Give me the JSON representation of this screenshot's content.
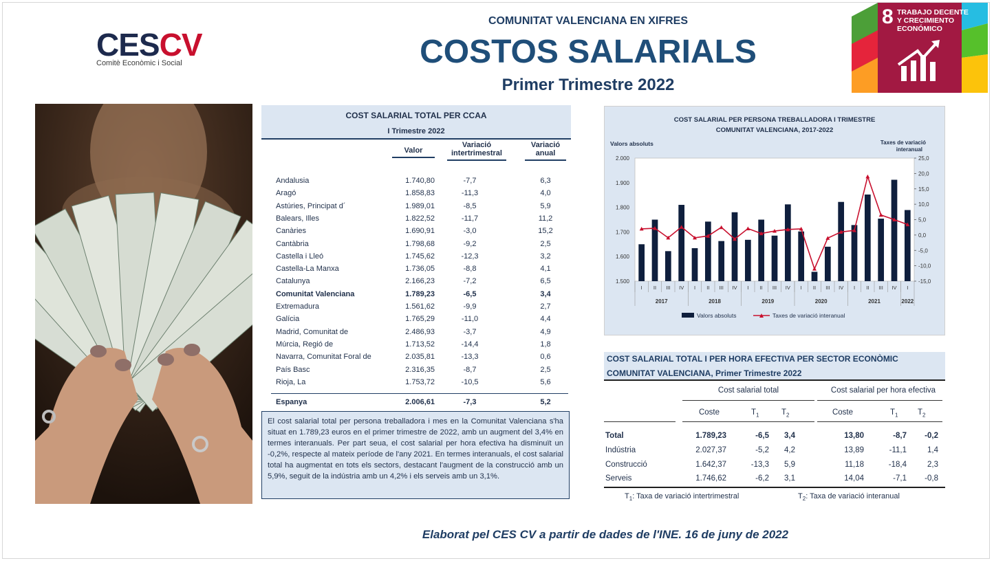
{
  "header": {
    "supertitle": "COMUNITAT VALENCIANA EN XIFRES",
    "title": "COSTOS SALARIALS",
    "subtitle": "Primer Trimestre 2022"
  },
  "logo": {
    "ces": "CES",
    "cv": "CV",
    "org": "Comitè Econòmic i Social"
  },
  "sdg": {
    "number": "8",
    "label_line1": "TRABAJO DECENTE",
    "label_line2": "Y CRECIMIENTO",
    "label_line3": "ECONÓMICO",
    "color": "#A21942"
  },
  "ccaa_table": {
    "title": "COST SALARIAL TOTAL PER CCAA",
    "period": "I Trimestre 2022",
    "col_valor": "Valor",
    "col_inter_1": "Variació",
    "col_inter_2": "intertrimestral",
    "col_anual_1": "Variació",
    "col_anual_2": "anual",
    "rows": [
      {
        "name": "Andalusia",
        "valor": "1.740,80",
        "inter": "-7,7",
        "anual": "6,3"
      },
      {
        "name": "Aragó",
        "valor": "1.858,83",
        "inter": "-11,3",
        "anual": "4,0"
      },
      {
        "name": "Astúries, Principat d´",
        "valor": "1.989,01",
        "inter": "-8,5",
        "anual": "5,9"
      },
      {
        "name": "Balears, Illes",
        "valor": "1.822,52",
        "inter": "-11,7",
        "anual": "11,2"
      },
      {
        "name": "Canàries",
        "valor": "1.690,91",
        "inter": "-3,0",
        "anual": "15,2"
      },
      {
        "name": "Cantàbria",
        "valor": "1.798,68",
        "inter": "-9,2",
        "anual": "2,5"
      },
      {
        "name": "Castella i Lleó",
        "valor": "1.745,62",
        "inter": "-12,3",
        "anual": "3,2"
      },
      {
        "name": "Castella-La Manxa",
        "valor": "1.736,05",
        "inter": "-8,8",
        "anual": "4,1"
      },
      {
        "name": "Catalunya",
        "valor": "2.166,23",
        "inter": "-7,2",
        "anual": "6,5"
      },
      {
        "name": "Comunitat Valenciana",
        "valor": "1.789,23",
        "inter": "-6,5",
        "anual": "3,4",
        "bold": true
      },
      {
        "name": "Extremadura",
        "valor": "1.561,62",
        "inter": "-9,9",
        "anual": "2,7"
      },
      {
        "name": "Galícia",
        "valor": "1.765,29",
        "inter": "-11,0",
        "anual": "4,4"
      },
      {
        "name": "Madrid, Comunitat de",
        "valor": "2.486,93",
        "inter": "-3,7",
        "anual": "4,9"
      },
      {
        "name": "Múrcia, Regió de",
        "valor": "1.713,52",
        "inter": "-14,4",
        "anual": "1,8"
      },
      {
        "name": "Navarra, Comunitat Foral de",
        "valor": "2.035,81",
        "inter": "-13,3",
        "anual": "0,6"
      },
      {
        "name": "País Basc",
        "valor": "2.316,35",
        "inter": "-8,7",
        "anual": "2,5"
      },
      {
        "name": "Rioja, La",
        "valor": "1.753,72",
        "inter": "-10,5",
        "anual": "5,6"
      }
    ],
    "total": {
      "name": "Espanya",
      "valor": "2.006,61",
      "inter": "-7,3",
      "anual": "5,2"
    }
  },
  "note_text": "El cost salarial total per persona treballadora i mes en la Comunitat Valenciana s'ha situat en 1.789,23 euros en el primer trimestre de 2022, amb un augment del 3,4% en termes interanuals. Per part seua, el cost salarial per hora efectiva ha disminuït un -0,2%, respecte al mateix període de l'any 2021. En termes interanuals, el cost salarial total ha augmentat en tots els sectors, destacant l'augment de la construcció amb un 5,9%, seguit de la indústria amb un 4,2% i els serveis amb un 3,1%.",
  "chart_data": {
    "type": "bar",
    "title": "COST SALARIAL PER PERSONA TREBALLADORA I TRIMESTRE",
    "subtitle": "COMUNITAT VALENCIANA, 2017-2022",
    "ylabel_left": "Valors absoluts",
    "ylabel_right_1": "Taxes de variació",
    "ylabel_right_2": "interanual",
    "ylim_left": [
      1500,
      2000
    ],
    "yticks_left": [
      "2.000",
      "1.900",
      "1.800",
      "1.700",
      "1.600",
      "1.500"
    ],
    "ylim_right": [
      -15,
      25
    ],
    "yticks_right": [
      "25,0",
      "20,0",
      "15,0",
      "10,0",
      "5,0",
      "0,0",
      "-5,0",
      "-10,0",
      "-15,0"
    ],
    "quarters": [
      "I",
      "II",
      "III",
      "IV",
      "I",
      "II",
      "III",
      "IV",
      "I",
      "II",
      "III",
      "IV",
      "I",
      "II",
      "III",
      "IV",
      "I",
      "II",
      "III",
      "IV",
      "I"
    ],
    "years": [
      {
        "label": "2017",
        "count": 4
      },
      {
        "label": "2018",
        "count": 4
      },
      {
        "label": "2019",
        "count": 4
      },
      {
        "label": "2020",
        "count": 4
      },
      {
        "label": "2021",
        "count": 4
      },
      {
        "label": "2022",
        "count": 1
      }
    ],
    "grid": false,
    "legend_position": "bottom",
    "series": [
      {
        "name": "Valors absoluts",
        "kind": "bar",
        "axis": "left",
        "color": "#0f1f3d",
        "values": [
          1650,
          1750,
          1622,
          1810,
          1634,
          1742,
          1663,
          1780,
          1668,
          1750,
          1685,
          1812,
          1702,
          1538,
          1640,
          1822,
          1728,
          1852,
          1754,
          1912,
          1789
        ]
      },
      {
        "name": "Taxes de variació interanual",
        "kind": "line",
        "axis": "right",
        "color": "#c8102e",
        "values": [
          2.0,
          2.2,
          -0.9,
          2.6,
          -0.9,
          -0.3,
          2.5,
          -1.3,
          2.1,
          0.5,
          1.3,
          1.8,
          2.0,
          -11.0,
          -1.0,
          1.0,
          1.5,
          19.0,
          6.5,
          5.0,
          3.4
        ]
      }
    ]
  },
  "sector_table": {
    "title_line1": "COST SALARIAL TOTAL I PER HORA EFECTIVA PER SECTOR ECONÒMIC",
    "title_line2": "COMUNITAT VALENCIANA, Primer Trimestre 2022",
    "group1": "Cost salarial total",
    "group2": "Cost salarial per hora efectiva",
    "col_coste": "Coste",
    "col_t1": "T1",
    "col_t2": "T2",
    "rows": [
      {
        "name": "Total",
        "coste": "1.789,23",
        "t1": "-6,5",
        "t2": "3,4",
        "h_coste": "13,80",
        "h_t1": "-8,7",
        "h_t2": "-0,2",
        "bold": true
      },
      {
        "name": "Indústria",
        "coste": "2.027,37",
        "t1": "-5,2",
        "t2": "4,2",
        "h_coste": "13,89",
        "h_t1": "-11,1",
        "h_t2": "1,4"
      },
      {
        "name": "Construcció",
        "coste": "1.642,37",
        "t1": "-13,3",
        "t2": "5,9",
        "h_coste": "11,18",
        "h_t1": "-18,4",
        "h_t2": "2,3"
      },
      {
        "name": "Serveis",
        "coste": "1.746,62",
        "t1": "-6,2",
        "t2": "3,1",
        "h_coste": "14,04",
        "h_t1": "-7,1",
        "h_t2": "-0,8"
      }
    ],
    "footnote_t1": "T1: Taxa de variació intertrimestral",
    "footnote_t2": "T2: Taxa de variació interanual"
  },
  "footer": "Elaborat pel CES CV a partir de dades de l'INE. 16 de juny de 2022"
}
